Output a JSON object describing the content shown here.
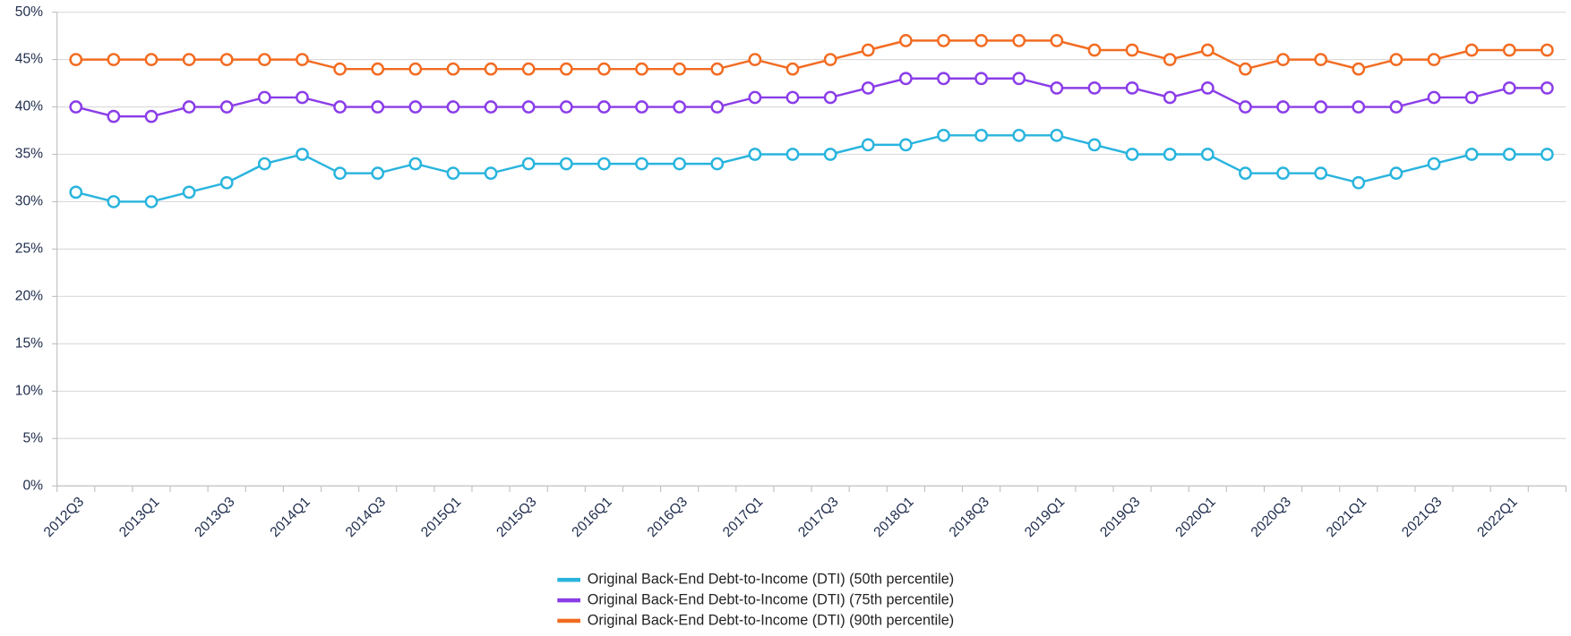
{
  "chart_data": {
    "type": "line",
    "categories": [
      "2012Q3",
      null,
      "2013Q1",
      null,
      "2013Q3",
      null,
      "2014Q1",
      null,
      "2014Q3",
      null,
      "2015Q1",
      null,
      "2015Q3",
      null,
      "2016Q1",
      null,
      "2016Q3",
      null,
      "2017Q1",
      null,
      "2017Q3",
      null,
      "2018Q1",
      null,
      "2018Q3",
      null,
      "2019Q1",
      null,
      "2019Q3",
      null,
      "2020Q1",
      null,
      "2020Q3",
      null,
      "2021Q1",
      null,
      "2021Q3",
      null,
      "2022Q1",
      null
    ],
    "series": [
      {
        "name": "Original Back-End Debt-to-Income (DTI) (50th percentile)",
        "color": "#29b4de",
        "values": [
          31,
          30,
          30,
          31,
          32,
          34,
          35,
          33,
          33,
          34,
          33,
          33,
          34,
          34,
          34,
          34,
          34,
          34,
          35,
          35,
          35,
          36,
          36,
          37,
          37,
          37,
          37,
          36,
          35,
          35,
          35,
          33,
          33,
          33,
          32,
          33,
          34,
          35,
          35,
          35
        ]
      },
      {
        "name": "Original Back-End Debt-to-Income (DTI) (75th percentile)",
        "color": "#8a3de8",
        "values": [
          40,
          39,
          39,
          40,
          40,
          41,
          41,
          40,
          40,
          40,
          40,
          40,
          40,
          40,
          40,
          40,
          40,
          40,
          41,
          41,
          41,
          42,
          43,
          43,
          43,
          43,
          42,
          42,
          42,
          41,
          42,
          40,
          40,
          40,
          40,
          40,
          41,
          41,
          42,
          42
        ]
      },
      {
        "name": "Original Back-End Debt-to-Income (DTI) (90th percentile)",
        "color": "#f26b21",
        "values": [
          45,
          45,
          45,
          45,
          45,
          45,
          45,
          44,
          44,
          44,
          44,
          44,
          44,
          44,
          44,
          44,
          44,
          44,
          45,
          44,
          45,
          46,
          47,
          47,
          47,
          47,
          47,
          46,
          46,
          45,
          46,
          44,
          45,
          45,
          44,
          45,
          45,
          46,
          46,
          46
        ]
      }
    ],
    "ylim": [
      0,
      50
    ],
    "yticks": [
      {
        "value": 0,
        "label": "0%"
      },
      {
        "value": 5,
        "label": "5%"
      },
      {
        "value": 10,
        "label": "10%"
      },
      {
        "value": 15,
        "label": "15%"
      },
      {
        "value": 20,
        "label": "20%"
      },
      {
        "value": 25,
        "label": "25%"
      },
      {
        "value": 30,
        "label": "30%"
      },
      {
        "value": 35,
        "label": "35%"
      },
      {
        "value": 40,
        "label": "40%"
      },
      {
        "value": 45,
        "label": "45%"
      },
      {
        "value": 50,
        "label": "50%"
      }
    ],
    "grid": true,
    "legend": "bottom"
  }
}
